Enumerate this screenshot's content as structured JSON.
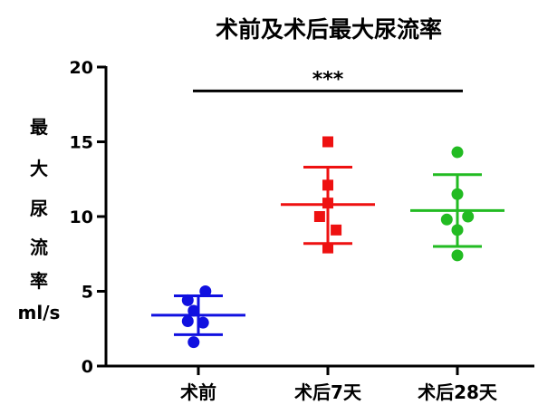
{
  "chart_data": {
    "type": "scatter",
    "title": "术前及术后最大尿流率",
    "ylabel_lines": [
      "最",
      "大",
      "尿",
      "流",
      "率",
      "ml/s"
    ],
    "xlabel": "",
    "ylim": [
      0,
      20
    ],
    "yticks": [
      0,
      5,
      10,
      15,
      20
    ],
    "categories": [
      "术前",
      "术后7天",
      "术后28天"
    ],
    "groups": [
      {
        "category": "术前",
        "color": "#1010e0",
        "marker": "circle",
        "points": [
          {
            "offset": -0.45,
            "y": 4.4
          },
          {
            "offset": 0.3,
            "y": 5.0
          },
          {
            "offset": -0.2,
            "y": 3.7
          },
          {
            "offset": -0.45,
            "y": 3.0
          },
          {
            "offset": 0.2,
            "y": 2.9
          },
          {
            "offset": -0.2,
            "y": 1.6
          }
        ],
        "mean": 3.4,
        "sd_upper": 4.7,
        "sd_lower": 2.1
      },
      {
        "category": "术后7天",
        "color": "#ee1111",
        "marker": "square",
        "points": [
          {
            "offset": 0.0,
            "y": 15.0
          },
          {
            "offset": 0.0,
            "y": 12.1
          },
          {
            "offset": 0.0,
            "y": 10.9
          },
          {
            "offset": -0.35,
            "y": 10.0
          },
          {
            "offset": 0.35,
            "y": 9.1
          },
          {
            "offset": 0.0,
            "y": 7.9
          }
        ],
        "mean": 10.8,
        "sd_upper": 13.3,
        "sd_lower": 8.2
      },
      {
        "category": "术后28天",
        "color": "#22bb22",
        "marker": "circle",
        "points": [
          {
            "offset": 0.0,
            "y": 14.3
          },
          {
            "offset": 0.0,
            "y": 11.5
          },
          {
            "offset": -0.45,
            "y": 9.8
          },
          {
            "offset": 0.45,
            "y": 10.0
          },
          {
            "offset": 0.0,
            "y": 9.1
          },
          {
            "offset": 0.0,
            "y": 7.4
          }
        ],
        "mean": 10.4,
        "sd_upper": 12.8,
        "sd_lower": 8.0
      }
    ],
    "significance": {
      "label": "***",
      "from": "术前",
      "to": "术后28天",
      "y": 18.4
    },
    "grid": false,
    "legend": "none"
  }
}
